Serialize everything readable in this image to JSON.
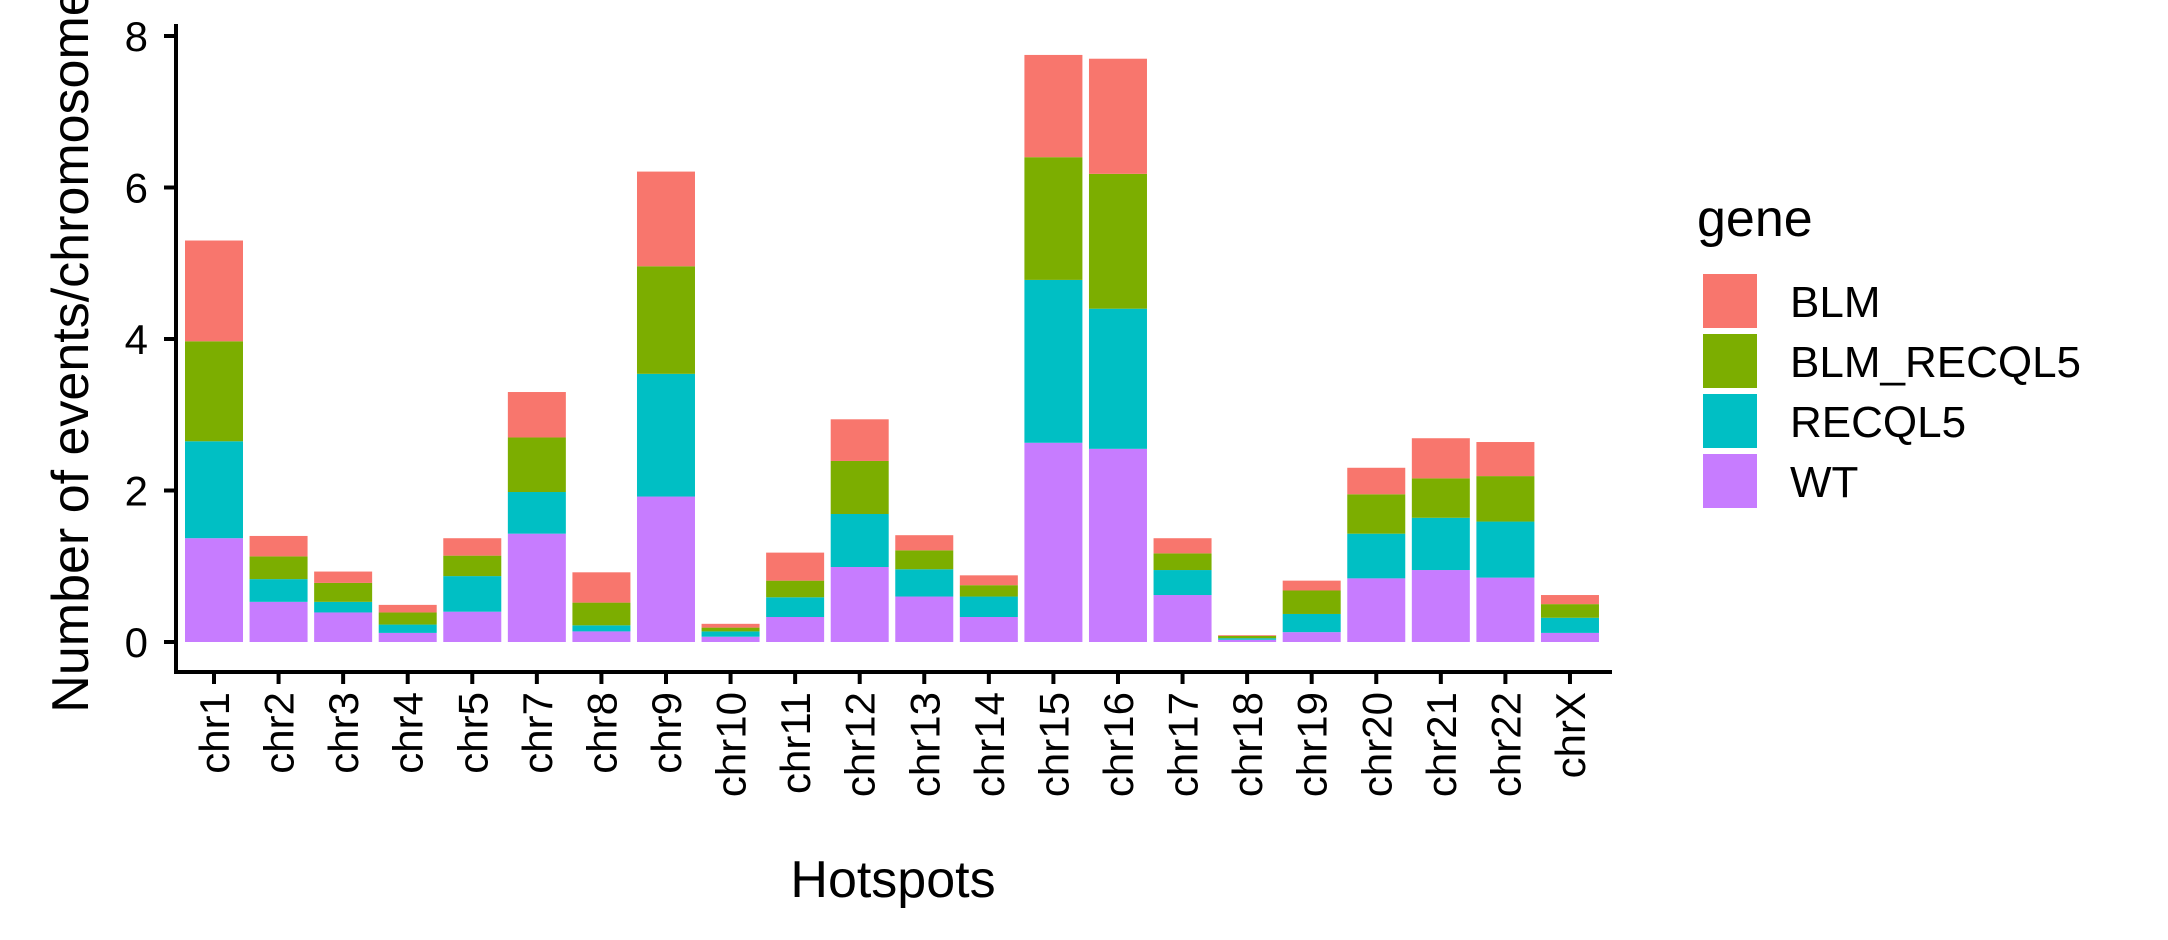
{
  "chart_data": {
    "type": "bar",
    "stacked": true,
    "title": "",
    "xlabel": "Hotspots",
    "ylabel": "Number of events/chromosome",
    "ylim": [
      0,
      8
    ],
    "yticks": [
      0,
      2,
      4,
      6,
      8
    ],
    "grid": false,
    "legend": {
      "title": "gene",
      "position": "right"
    },
    "categories": [
      "chr1",
      "chr2",
      "chr3",
      "chr4",
      "chr5",
      "chr7",
      "chr8",
      "chr9",
      "chr10",
      "chr11",
      "chr12",
      "chr13",
      "chr14",
      "chr15",
      "chr16",
      "chr17",
      "chr18",
      "chr19",
      "chr20",
      "chr21",
      "chr22",
      "chrX"
    ],
    "series": [
      {
        "name": "BLM",
        "color": "#F8766D",
        "values": [
          1.33,
          0.27,
          0.15,
          0.1,
          0.23,
          0.6,
          0.4,
          1.25,
          0.05,
          0.37,
          0.55,
          0.2,
          0.13,
          1.35,
          1.52,
          0.2,
          0.01,
          0.13,
          0.35,
          0.53,
          0.45,
          0.12
        ]
      },
      {
        "name": "BLM_RECQL5",
        "color": "#7CAE00",
        "values": [
          1.32,
          0.3,
          0.25,
          0.16,
          0.27,
          0.72,
          0.3,
          1.42,
          0.05,
          0.22,
          0.7,
          0.25,
          0.15,
          1.62,
          1.78,
          0.22,
          0.03,
          0.31,
          0.52,
          0.52,
          0.6,
          0.18
        ]
      },
      {
        "name": "RECQL5",
        "color": "#00BFC4",
        "values": [
          1.28,
          0.3,
          0.14,
          0.11,
          0.47,
          0.55,
          0.08,
          1.62,
          0.07,
          0.26,
          0.7,
          0.36,
          0.27,
          2.15,
          1.85,
          0.33,
          0.02,
          0.24,
          0.59,
          0.69,
          0.74,
          0.2
        ]
      },
      {
        "name": "WT",
        "color": "#C77CFF",
        "values": [
          1.37,
          0.53,
          0.39,
          0.12,
          0.4,
          1.43,
          0.14,
          1.92,
          0.07,
          0.33,
          0.99,
          0.6,
          0.33,
          2.63,
          2.55,
          0.62,
          0.03,
          0.13,
          0.84,
          0.95,
          0.85,
          0.12
        ]
      }
    ]
  }
}
